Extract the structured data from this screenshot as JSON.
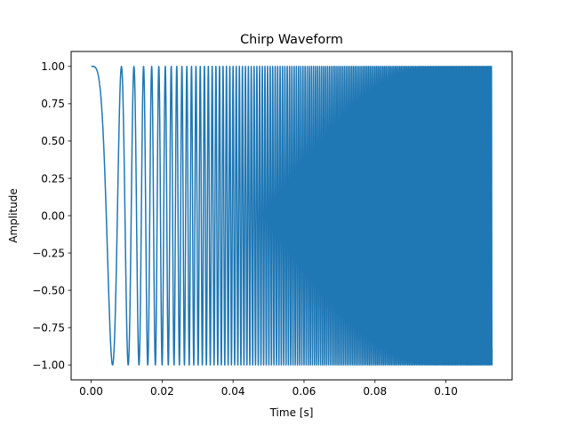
{
  "chart_data": {
    "type": "line",
    "title": "Chirp Waveform",
    "xlabel": "Time [s]",
    "ylabel": "Amplitude",
    "xlim": [
      -0.00565,
      0.11865
    ],
    "ylim": [
      -1.1,
      1.1
    ],
    "xticks": [
      0.0,
      0.02,
      0.04,
      0.06,
      0.08,
      0.1
    ],
    "xtick_labels": [
      "0.00",
      "0.02",
      "0.04",
      "0.06",
      "0.08",
      "0.10"
    ],
    "yticks": [
      -1.0,
      -0.75,
      -0.5,
      -0.25,
      0.0,
      0.25,
      0.5,
      0.75,
      1.0
    ],
    "ytick_labels": [
      "−1.00",
      "−0.75",
      "−0.50",
      "−0.25",
      "0.00",
      "0.25",
      "0.50",
      "0.75",
      "1.00"
    ],
    "grid": false,
    "series": [
      {
        "color": "#1f77b4",
        "function": "cos(2*pi*(0.5*k*t^2))",
        "k": 27500,
        "t_start": 0.0,
        "t_end": 0.113,
        "points": [
          {
            "x": 0.0,
            "y": 1.0
          },
          {
            "x": 0.00603,
            "y": -1.0
          },
          {
            "x": 0.00853,
            "y": 1.0
          },
          {
            "x": 0.01044,
            "y": -1.0
          },
          {
            "x": 0.01206,
            "y": 1.0
          },
          {
            "x": 0.1135,
            "y": -1.0
          }
        ]
      }
    ]
  }
}
